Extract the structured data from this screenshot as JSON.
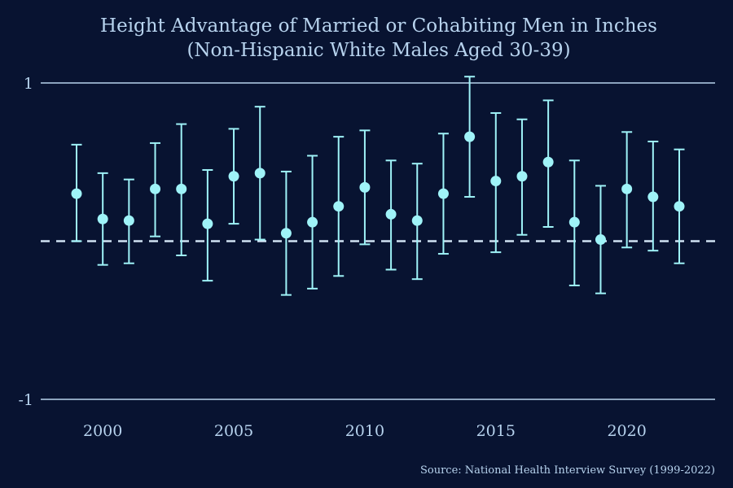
{
  "colors": {
    "background": "#081331",
    "text": "#b7d3ee",
    "grid": "#b7d3ee",
    "points": "#9ff3f8",
    "zero_line": "#cfe2f2"
  },
  "chart_data": {
    "type": "scatter",
    "title_line1": "Height Advantage of Married or Cohabiting Men in Inches",
    "title_line2": "(Non-Hispanic White Males Aged 30-39)",
    "xlabel": "",
    "ylabel": "",
    "caption": "Source: National Health Interview Survey (1999-2022)",
    "xlim": [
      1998,
      2023.5
    ],
    "ylim": [
      -1.02,
      1.1
    ],
    "x_ticks": [
      2000,
      2005,
      2010,
      2015,
      2020
    ],
    "x_tick_labels": [
      "2000",
      "2005",
      "2010",
      "2015",
      "2020"
    ],
    "y_ticks": [
      -1,
      1
    ],
    "y_tick_labels": [
      "-1",
      "1"
    ],
    "grid": "horizontal gridlines at y ticks",
    "reference_line": {
      "y": 0,
      "style": "dashed"
    },
    "series": [
      {
        "points": [
          {
            "x": 1999,
            "y": 0.3,
            "lo": 0.0,
            "hi": 0.61
          },
          {
            "x": 2000,
            "y": 0.14,
            "lo": -0.15,
            "hi": 0.43
          },
          {
            "x": 2001,
            "y": 0.13,
            "lo": -0.14,
            "hi": 0.39
          },
          {
            "x": 2002,
            "y": 0.33,
            "lo": 0.03,
            "hi": 0.62
          },
          {
            "x": 2003,
            "y": 0.33,
            "lo": -0.09,
            "hi": 0.74
          },
          {
            "x": 2004,
            "y": 0.11,
            "lo": -0.25,
            "hi": 0.45
          },
          {
            "x": 2005,
            "y": 0.41,
            "lo": 0.11,
            "hi": 0.71
          },
          {
            "x": 2006,
            "y": 0.43,
            "lo": 0.01,
            "hi": 0.85
          },
          {
            "x": 2007,
            "y": 0.05,
            "lo": -0.34,
            "hi": 0.44
          },
          {
            "x": 2008,
            "y": 0.12,
            "lo": -0.3,
            "hi": 0.54
          },
          {
            "x": 2009,
            "y": 0.22,
            "lo": -0.22,
            "hi": 0.66
          },
          {
            "x": 2010,
            "y": 0.34,
            "lo": -0.02,
            "hi": 0.7
          },
          {
            "x": 2011,
            "y": 0.17,
            "lo": -0.18,
            "hi": 0.51
          },
          {
            "x": 2012,
            "y": 0.13,
            "lo": -0.24,
            "hi": 0.49
          },
          {
            "x": 2013,
            "y": 0.3,
            "lo": -0.08,
            "hi": 0.68
          },
          {
            "x": 2014,
            "y": 0.66,
            "lo": 0.28,
            "hi": 1.04
          },
          {
            "x": 2015,
            "y": 0.38,
            "lo": -0.07,
            "hi": 0.81
          },
          {
            "x": 2016,
            "y": 0.41,
            "lo": 0.04,
            "hi": 0.77
          },
          {
            "x": 2017,
            "y": 0.5,
            "lo": 0.09,
            "hi": 0.89
          },
          {
            "x": 2018,
            "y": 0.12,
            "lo": -0.28,
            "hi": 0.51
          },
          {
            "x": 2019,
            "y": 0.01,
            "lo": -0.33,
            "hi": 0.35
          },
          {
            "x": 2020,
            "y": 0.33,
            "lo": -0.04,
            "hi": 0.69
          },
          {
            "x": 2021,
            "y": 0.28,
            "lo": -0.06,
            "hi": 0.63
          },
          {
            "x": 2022,
            "y": 0.22,
            "lo": -0.14,
            "hi": 0.58
          }
        ]
      }
    ]
  }
}
